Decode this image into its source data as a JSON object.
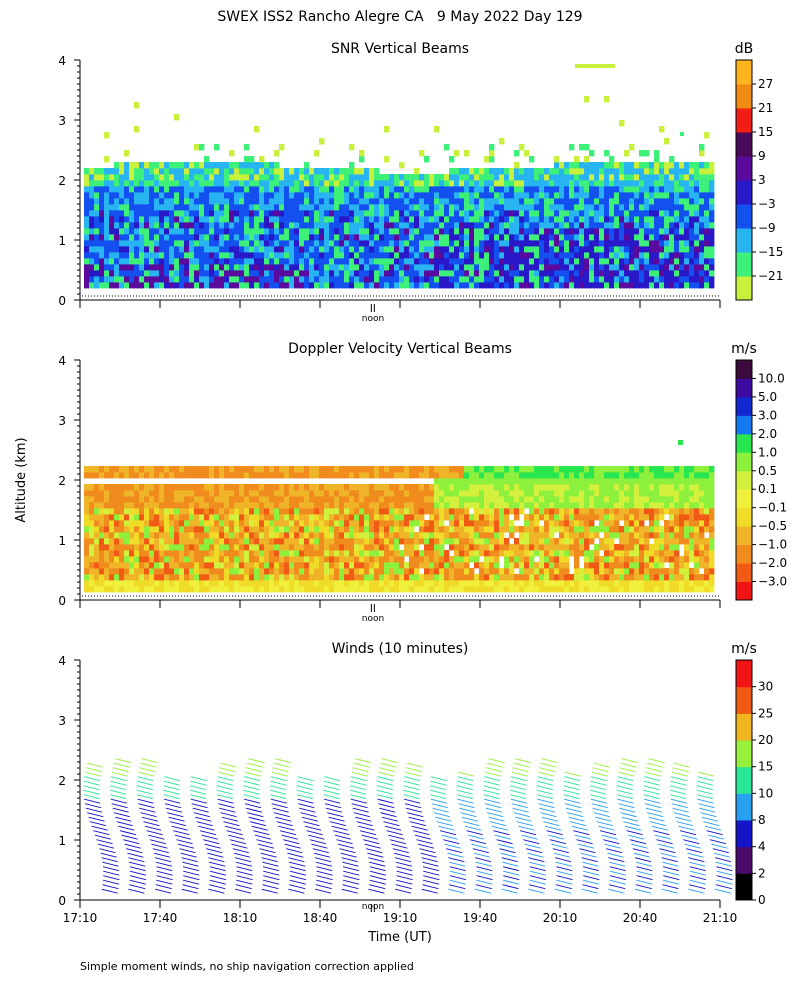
{
  "figure_title": "SWEX ISS2 Rancho Alegre CA   9 May 2022 Day 129",
  "footnote": "Simple moment winds, no ship navigation correction applied",
  "ylabel_shared": "Altitude (km)",
  "noon_marker": "noon",
  "colors": {
    "snr": [
      "#c8f03c",
      "#3cf07a",
      "#28b4f0",
      "#1450f0",
      "#2818c8",
      "#5a0a9c",
      "#4a0a5a",
      "#f01e14",
      "#f08c14",
      "#ffb41e"
    ],
    "doppler": [
      "#f01414",
      "#f05a14",
      "#f08c1e",
      "#f0b428",
      "#f0dc28",
      "#f0f03c",
      "#d2f03c",
      "#8cf03c",
      "#28e650",
      "#1478f0",
      "#1428d2",
      "#3c0aa0",
      "#3c0a3c"
    ],
    "winds": [
      "#000000",
      "#4a0a6a",
      "#1414c8",
      "#28a0f0",
      "#28e696",
      "#96f03c",
      "#f0b41e",
      "#f05a14",
      "#f01414"
    ]
  },
  "chart_data": [
    {
      "type": "heatmap",
      "title": "SNR Vertical Beams",
      "xlim": [
        0,
        240
      ],
      "ylim": [
        0,
        4
      ],
      "yticks": [
        "0",
        "1",
        "2",
        "3",
        "4"
      ],
      "colorbar_unit": "dB",
      "colorbar_labels": [
        "27",
        "21",
        "15",
        "9",
        "3",
        "−3",
        "−9",
        "−15",
        "−21"
      ]
    },
    {
      "type": "heatmap",
      "title": "Doppler Velocity Vertical Beams",
      "xlim": [
        0,
        240
      ],
      "ylim": [
        0,
        4
      ],
      "yticks": [
        "0",
        "1",
        "2",
        "3",
        "4"
      ],
      "colorbar_unit": "m/s",
      "colorbar_labels": [
        "10.0",
        "5.0",
        "3.0",
        "2.0",
        "1.0",
        "0.5",
        "0.1",
        "−0.1",
        "−0.5",
        "−1.0",
        "−2.0",
        "−3.0"
      ]
    },
    {
      "type": "scatter",
      "title": "Winds (10 minutes)",
      "xlim": [
        0,
        240
      ],
      "ylim": [
        0,
        4
      ],
      "yticks": [
        "0",
        "1",
        "2",
        "3",
        "4"
      ],
      "xtick_labels": [
        "17:10",
        "17:40",
        "18:10",
        "18:40",
        "19:10",
        "19:40",
        "20:10",
        "20:40",
        "21:10"
      ],
      "xlabel": "Time (UT)",
      "colorbar_unit": "m/s",
      "colorbar_labels": [
        "30",
        "25",
        "20",
        "15",
        "10",
        "8",
        "4",
        "2",
        "0"
      ]
    }
  ]
}
